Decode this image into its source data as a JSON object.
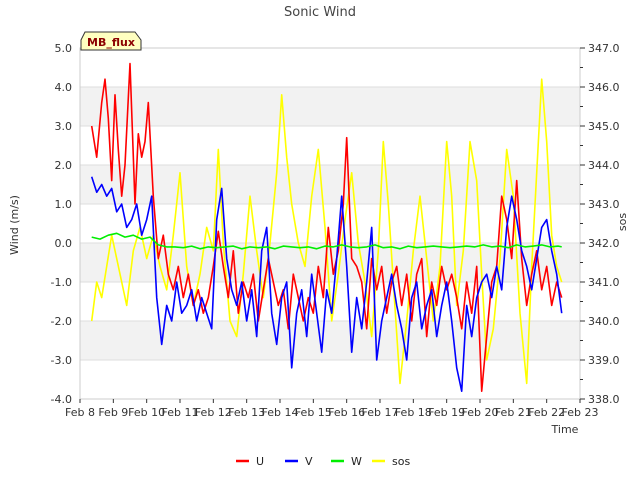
{
  "chart_data": {
    "type": "line",
    "title": "Sonic Wind",
    "xlabel": "Time",
    "ylabel": "Wind (m/s)",
    "ylabel_right": "sos",
    "badge": "MB_flux",
    "xlim": [
      8,
      23
    ],
    "ylim": [
      -4,
      5
    ],
    "ylim_right": [
      338,
      347
    ],
    "x_ticks": [
      "Feb 8",
      "Feb 9",
      "Feb 10",
      "Feb 11",
      "Feb 12",
      "Feb 13",
      "Feb 14",
      "Feb 15",
      "Feb 16",
      "Feb 17",
      "Feb 18",
      "Feb 19",
      "Feb 20",
      "Feb 21",
      "Feb 22",
      "Feb 23"
    ],
    "y_ticks": [
      "-4.0",
      "-3.0",
      "-2.0",
      "-1.0",
      "0.0",
      "1.0",
      "2.0",
      "3.0",
      "4.0",
      "5.0"
    ],
    "y_ticks_right": [
      "338.0",
      "339.0",
      "340.0",
      "341.0",
      "342.0",
      "343.0",
      "344.0",
      "345.0",
      "346.0",
      "347.0"
    ],
    "series": [
      {
        "name": "U",
        "color": "#ff0000",
        "axis": "left",
        "x": [
          8.35,
          8.5,
          8.65,
          8.75,
          8.85,
          8.95,
          9.05,
          9.15,
          9.25,
          9.35,
          9.5,
          9.65,
          9.75,
          9.85,
          9.95,
          10.05,
          10.2,
          10.35,
          10.5,
          10.65,
          10.8,
          10.95,
          11.1,
          11.25,
          11.4,
          11.55,
          11.7,
          11.85,
          12.0,
          12.15,
          12.3,
          12.45,
          12.6,
          12.75,
          12.9,
          13.05,
          13.2,
          13.35,
          13.5,
          13.65,
          13.8,
          13.95,
          14.1,
          14.25,
          14.4,
          14.55,
          14.7,
          14.85,
          15.0,
          15.15,
          15.3,
          15.45,
          15.6,
          15.75,
          15.9,
          16.0,
          16.15,
          16.3,
          16.45,
          16.6,
          16.75,
          16.9,
          17.05,
          17.2,
          17.35,
          17.5,
          17.65,
          17.8,
          17.95,
          18.1,
          18.25,
          18.4,
          18.55,
          18.7,
          18.85,
          19.0,
          19.15,
          19.3,
          19.45,
          19.6,
          19.75,
          19.9,
          20.05,
          20.2,
          20.35,
          20.5,
          20.65,
          20.8,
          20.95,
          21.1,
          21.25,
          21.4,
          21.55,
          21.7,
          21.85,
          22.0,
          22.15,
          22.3,
          22.45
        ],
        "y": [
          3.0,
          2.2,
          3.6,
          4.2,
          3.2,
          1.6,
          3.8,
          2.4,
          1.2,
          2.0,
          4.6,
          1.0,
          2.8,
          2.2,
          2.6,
          3.6,
          1.2,
          -0.4,
          0.2,
          -0.8,
          -1.2,
          -0.6,
          -1.4,
          -0.8,
          -1.6,
          -1.2,
          -1.8,
          -1.4,
          -0.6,
          0.3,
          -0.6,
          -1.4,
          -0.2,
          -1.8,
          -1.0,
          -1.4,
          -0.8,
          -2.0,
          -1.2,
          -0.4,
          -1.0,
          -1.6,
          -1.2,
          -2.2,
          -0.8,
          -1.4,
          -2.0,
          -1.4,
          -1.8,
          -0.6,
          -1.4,
          0.4,
          -0.8,
          -0.2,
          1.0,
          2.7,
          -0.4,
          -0.6,
          -1.0,
          -2.2,
          -0.4,
          -1.2,
          -0.6,
          -1.8,
          -1.0,
          -0.6,
          -1.6,
          -0.8,
          -2.0,
          -0.8,
          -0.4,
          -2.4,
          -1.0,
          -1.6,
          -0.6,
          -1.2,
          -0.8,
          -1.4,
          -2.2,
          -1.0,
          -1.8,
          -0.6,
          -3.8,
          -2.4,
          -1.0,
          -0.6,
          1.2,
          0.6,
          -0.4,
          1.6,
          -0.4,
          -1.6,
          -0.8,
          -0.2,
          -1.2,
          -0.6,
          -1.6,
          -1.0,
          -1.4
        ]
      },
      {
        "name": "V",
        "color": "#0000ff",
        "axis": "left",
        "x": [
          8.35,
          8.5,
          8.65,
          8.8,
          8.95,
          9.1,
          9.25,
          9.4,
          9.55,
          9.7,
          9.85,
          10.0,
          10.15,
          10.3,
          10.45,
          10.6,
          10.75,
          10.9,
          11.05,
          11.2,
          11.35,
          11.5,
          11.65,
          11.8,
          11.95,
          12.1,
          12.25,
          12.4,
          12.55,
          12.7,
          12.85,
          13.0,
          13.15,
          13.3,
          13.45,
          13.6,
          13.75,
          13.9,
          14.05,
          14.2,
          14.35,
          14.5,
          14.65,
          14.8,
          14.95,
          15.1,
          15.25,
          15.4,
          15.55,
          15.7,
          15.85,
          16.0,
          16.15,
          16.3,
          16.45,
          16.6,
          16.75,
          16.9,
          17.05,
          17.2,
          17.35,
          17.5,
          17.65,
          17.8,
          17.95,
          18.1,
          18.25,
          18.4,
          18.55,
          18.7,
          18.85,
          19.0,
          19.15,
          19.3,
          19.45,
          19.6,
          19.75,
          19.9,
          20.05,
          20.2,
          20.35,
          20.5,
          20.65,
          20.8,
          20.95,
          21.1,
          21.25,
          21.4,
          21.55,
          21.7,
          21.85,
          22.0,
          22.15,
          22.3,
          22.45
        ],
        "y": [
          1.7,
          1.3,
          1.5,
          1.2,
          1.4,
          0.8,
          1.0,
          0.4,
          0.6,
          1.0,
          0.2,
          0.6,
          1.2,
          -1.4,
          -2.6,
          -1.6,
          -2.0,
          -1.0,
          -1.8,
          -1.6,
          -1.2,
          -2.0,
          -1.4,
          -1.8,
          -2.2,
          0.6,
          1.4,
          -0.4,
          -1.2,
          -1.6,
          -1.0,
          -2.0,
          -1.2,
          -2.4,
          -0.2,
          0.4,
          -1.8,
          -2.6,
          -1.4,
          -1.0,
          -3.2,
          -1.8,
          -1.2,
          -2.4,
          -0.8,
          -1.8,
          -2.8,
          -1.2,
          -1.8,
          -0.4,
          1.2,
          -0.6,
          -2.8,
          -1.4,
          -2.2,
          -1.0,
          0.4,
          -3.0,
          -2.0,
          -1.4,
          -0.8,
          -1.6,
          -2.2,
          -3.0,
          -1.4,
          -1.0,
          -2.2,
          -1.6,
          -1.2,
          -2.4,
          -1.6,
          -1.0,
          -2.0,
          -3.2,
          -3.8,
          -1.6,
          -2.4,
          -1.4,
          -1.0,
          -0.8,
          -1.4,
          -0.6,
          -1.2,
          0.4,
          1.2,
          0.6,
          -0.2,
          -0.6,
          -1.2,
          -0.4,
          0.4,
          0.6,
          -0.2,
          -0.8,
          -1.8
        ]
      },
      {
        "name": "W",
        "color": "#00ee00",
        "axis": "left",
        "x": [
          8.35,
          8.6,
          8.85,
          9.1,
          9.35,
          9.6,
          9.85,
          10.1,
          10.35,
          10.6,
          10.85,
          11.1,
          11.35,
          11.6,
          11.85,
          12.1,
          12.35,
          12.6,
          12.85,
          13.1,
          13.35,
          13.6,
          13.85,
          14.1,
          14.35,
          14.6,
          14.85,
          15.1,
          15.35,
          15.6,
          15.85,
          16.1,
          16.35,
          16.6,
          16.85,
          17.1,
          17.35,
          17.6,
          17.85,
          18.1,
          18.35,
          18.6,
          18.85,
          19.1,
          19.35,
          19.6,
          19.85,
          20.1,
          20.35,
          20.6,
          20.85,
          21.1,
          21.35,
          21.6,
          21.85,
          22.1,
          22.35,
          22.45
        ],
        "y": [
          0.15,
          0.1,
          0.2,
          0.25,
          0.15,
          0.2,
          0.1,
          0.15,
          -0.05,
          -0.1,
          -0.1,
          -0.12,
          -0.08,
          -0.15,
          -0.1,
          -0.12,
          -0.1,
          -0.08,
          -0.15,
          -0.1,
          -0.12,
          -0.1,
          -0.15,
          -0.08,
          -0.1,
          -0.12,
          -0.1,
          -0.15,
          -0.08,
          -0.1,
          -0.05,
          -0.1,
          -0.12,
          -0.1,
          -0.05,
          -0.12,
          -0.1,
          -0.15,
          -0.08,
          -0.12,
          -0.1,
          -0.08,
          -0.1,
          -0.12,
          -0.1,
          -0.08,
          -0.1,
          -0.05,
          -0.1,
          -0.08,
          -0.12,
          -0.05,
          -0.1,
          -0.08,
          -0.05,
          -0.1,
          -0.08,
          -0.1
        ]
      },
      {
        "name": "sos",
        "color": "#ffff00",
        "axis": "right",
        "x": [
          8.35,
          8.5,
          8.65,
          8.8,
          8.95,
          9.1,
          9.25,
          9.4,
          9.6,
          9.8,
          10.0,
          10.2,
          10.4,
          10.6,
          10.8,
          11.0,
          11.2,
          11.4,
          11.6,
          11.8,
          12.0,
          12.15,
          12.3,
          12.5,
          12.7,
          12.9,
          13.1,
          13.3,
          13.5,
          13.7,
          13.9,
          14.05,
          14.2,
          14.35,
          14.55,
          14.75,
          14.95,
          15.15,
          15.35,
          15.55,
          15.75,
          15.95,
          16.15,
          16.35,
          16.55,
          16.75,
          16.95,
          17.1,
          17.25,
          17.4,
          17.6,
          17.8,
          18.0,
          18.2,
          18.4,
          18.6,
          18.8,
          19.0,
          19.15,
          19.3,
          19.5,
          19.7,
          19.9,
          20.05,
          20.2,
          20.4,
          20.6,
          20.8,
          21.0,
          21.2,
          21.4,
          21.55,
          21.7,
          21.85,
          22.0,
          22.15,
          22.3,
          22.45
        ],
        "y": [
          340.0,
          341.0,
          340.6,
          341.4,
          342.2,
          341.6,
          341.0,
          340.4,
          341.8,
          342.4,
          341.6,
          342.2,
          341.4,
          340.8,
          342.2,
          343.8,
          341.4,
          340.4,
          341.2,
          342.4,
          341.8,
          344.4,
          342.0,
          340.0,
          339.6,
          341.2,
          343.2,
          341.8,
          340.6,
          342.0,
          343.8,
          345.8,
          344.2,
          343.0,
          342.0,
          341.4,
          343.2,
          344.4,
          342.4,
          340.0,
          341.2,
          342.6,
          343.8,
          342.0,
          341.0,
          339.6,
          341.8,
          344.6,
          343.0,
          341.0,
          338.4,
          340.0,
          341.8,
          343.2,
          341.6,
          340.0,
          341.4,
          344.6,
          343.2,
          340.4,
          341.8,
          344.6,
          343.6,
          341.2,
          339.0,
          339.8,
          341.6,
          344.4,
          343.2,
          340.2,
          338.4,
          341.4,
          343.8,
          346.2,
          344.6,
          342.2,
          341.4,
          341.0
        ]
      }
    ]
  }
}
